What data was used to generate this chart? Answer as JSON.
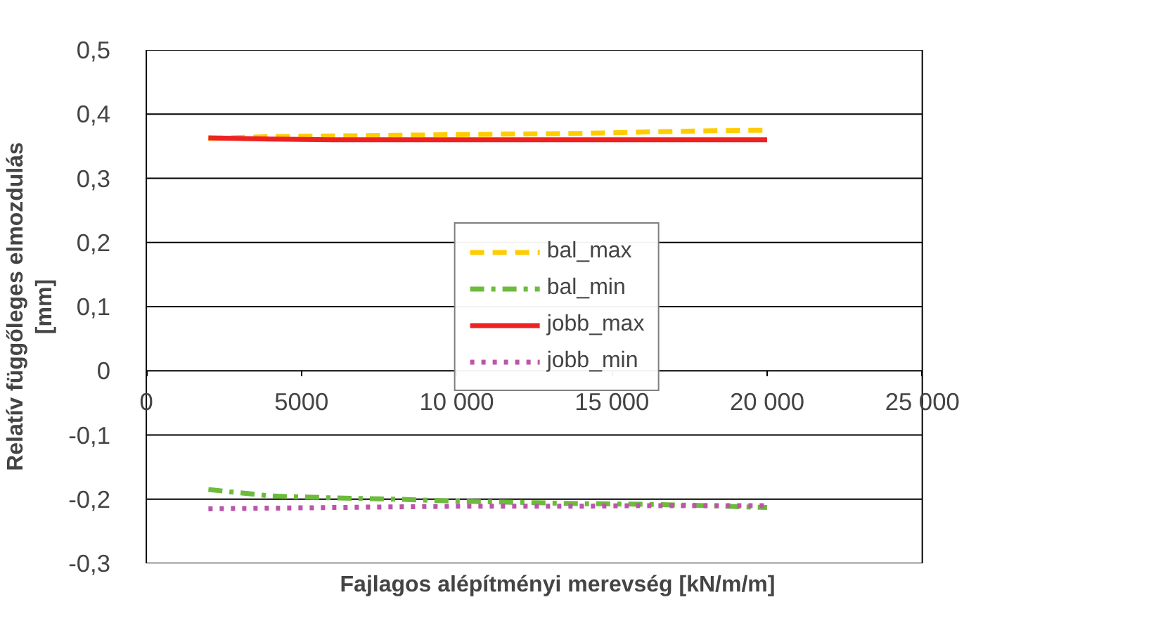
{
  "chart_data": {
    "type": "line",
    "xlabel": "Fajlagos alépítményi merevség [kN/m/m]",
    "ylabel": "Relatív függőleges elmozdulás\n[mm]",
    "x": [
      2000,
      4000,
      6000,
      8000,
      10000,
      12000,
      14000,
      16000,
      18000,
      20000
    ],
    "series": [
      {
        "name": "bal_max",
        "color": "#ffcc00",
        "line_style": "dashed",
        "values": [
          0.362,
          0.365,
          0.366,
          0.367,
          0.368,
          0.369,
          0.37,
          0.372,
          0.374,
          0.375
        ]
      },
      {
        "name": "bal_min",
        "color": "#6cbb3c",
        "line_style": "dashdot",
        "values": [
          -0.185,
          -0.195,
          -0.198,
          -0.2,
          -0.203,
          -0.205,
          -0.207,
          -0.208,
          -0.21,
          -0.213
        ]
      },
      {
        "name": "jobb_max",
        "color": "#ee2222",
        "line_style": "solid",
        "values": [
          0.363,
          0.361,
          0.36,
          0.36,
          0.36,
          0.36,
          0.36,
          0.36,
          0.36,
          0.36
        ]
      },
      {
        "name": "jobb_min",
        "color": "#bb55aa",
        "line_style": "dotted",
        "values": [
          -0.215,
          -0.214,
          -0.213,
          -0.212,
          -0.211,
          -0.211,
          -0.211,
          -0.21,
          -0.21,
          -0.21
        ]
      }
    ],
    "xlim": [
      0,
      25000
    ],
    "xticks": [
      0,
      5000,
      {
        "value": 10000,
        "label": "10 000"
      },
      {
        "value": 15000,
        "label": "15 000"
      },
      {
        "value": 20000,
        "label": "20 000"
      },
      {
        "value": 25000,
        "label": "25 000"
      }
    ],
    "ylim": [
      -0.3,
      0.5
    ],
    "yticks": [
      {
        "value": -0.3,
        "label": "-0,3"
      },
      {
        "value": -0.2,
        "label": "-0,2"
      },
      {
        "value": -0.1,
        "label": "-0,1"
      },
      0,
      {
        "value": 0.1,
        "label": "0,1"
      },
      {
        "value": 0.2,
        "label": "0,2"
      },
      {
        "value": 0.3,
        "label": "0,3"
      },
      {
        "value": 0.4,
        "label": "0,4"
      },
      {
        "value": 0.5,
        "label": "0,5"
      }
    ],
    "grid": "y",
    "legend": "center",
    "marker": "none"
  }
}
